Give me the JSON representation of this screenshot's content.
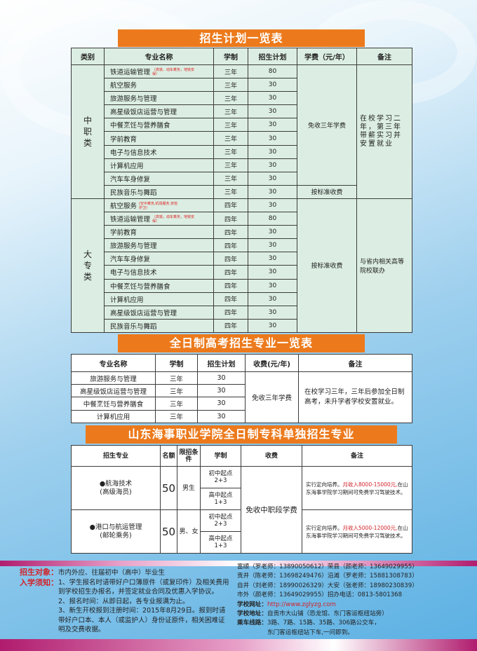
{
  "titles": {
    "plan": "招生计划一览表",
    "gaokao": "全日制高考招生专业一览表",
    "shandong": "山东海事职业学院全日制专科单独招生专业"
  },
  "table1": {
    "headers": [
      "类别",
      "专业名称",
      "学制",
      "招生计划",
      "学费（元/年）",
      "备注"
    ],
    "groups": [
      {
        "category": "中\n职\n类",
        "remark": "在校学习二年，第三年带薪实习并安置就业",
        "fees": [
          {
            "text": "免收三年学费",
            "span": 9
          },
          {
            "text": "按标准收费",
            "span": 1
          }
        ],
        "rows": [
          {
            "name": "铁道运输管理",
            "note": "（高铁、动车乘务，地铁安保）",
            "duration": "三年",
            "quota": "80"
          },
          {
            "name": "航空服务",
            "duration": "三年",
            "quota": "30"
          },
          {
            "name": "旅游服务与管理",
            "duration": "三年",
            "quota": "30"
          },
          {
            "name": "高星级饭店运营与管理",
            "duration": "三年",
            "quota": "30"
          },
          {
            "name": "中餐烹饪与营养膳食",
            "duration": "三年",
            "quota": "30"
          },
          {
            "name": "学前教育",
            "duration": "三年",
            "quota": "30"
          },
          {
            "name": "电子与信息技术",
            "duration": "三年",
            "quota": "30"
          },
          {
            "name": "计算机应用",
            "duration": "三年",
            "quota": "30"
          },
          {
            "name": "汽车车身修复",
            "duration": "三年",
            "quota": "30"
          },
          {
            "name": "民族音乐与舞蹈",
            "duration": "三年",
            "quota": "30"
          }
        ]
      },
      {
        "category": "大\n专\n类",
        "remark": "与省内相关高等院校联办",
        "fees": [
          {
            "text": "按标准收费",
            "span": 10
          }
        ],
        "rows": [
          {
            "name": "航空服务",
            "note": "(空中乘务,机场服务,安检护卫)",
            "duration": "四年",
            "quota": "30"
          },
          {
            "name": "铁道运输管理",
            "note": "（高铁，动车乘务，地铁安保）",
            "duration": "四年",
            "quota": "80"
          },
          {
            "name": "学前教育",
            "duration": "四年",
            "quota": "30"
          },
          {
            "name": "旅游服务与管理",
            "duration": "四年",
            "quota": "30"
          },
          {
            "name": "汽车车身修复",
            "duration": "四年",
            "quota": "30"
          },
          {
            "name": "电子与信息技术",
            "duration": "四年",
            "quota": "30"
          },
          {
            "name": "中餐烹饪与营养膳食",
            "duration": "四年",
            "quota": "30"
          },
          {
            "name": "计算机应用",
            "duration": "四年",
            "quota": "30"
          },
          {
            "name": "高星级饭店运营与管理",
            "duration": "四年",
            "quota": "30"
          },
          {
            "name": "民族音乐与舞蹈",
            "duration": "四年",
            "quota": "30"
          }
        ]
      }
    ]
  },
  "table2": {
    "headers": [
      "专业名称",
      "学制",
      "招生计划",
      "收费(元/年)",
      "备注"
    ],
    "fee": "免收三年学费",
    "remark": "在校学习三年，三年后参加全日制高考，未升学者学校安置就业。",
    "rows": [
      {
        "name": "旅游服务与管理",
        "duration": "三年",
        "quota": "30"
      },
      {
        "name": "高星级饭店运营与管理",
        "duration": "三年",
        "quota": "30"
      },
      {
        "name": "中餐烹饪与营养膳食",
        "duration": "三年",
        "quota": "30"
      },
      {
        "name": "计算机应用",
        "duration": "三年",
        "quota": "30"
      }
    ]
  },
  "table3": {
    "headers": [
      "招生专业",
      "名额",
      "限招条件",
      "学制",
      "收费",
      "备注"
    ],
    "fee": "免收中职段学费",
    "rows": [
      {
        "major": "●航海技术",
        "sub": "(高级海员)",
        "quota": "50",
        "cond": "男生",
        "tracks": [
          "初中起点 2+3",
          "高中起点 1+3"
        ],
        "remark_a": "实行定向培养。",
        "remark_b": "月收入8000-15000元,",
        "remark_c": "在山东海事学院学习期间可免费学习驾驶技术。"
      },
      {
        "major": "●港口与航运管理",
        "sub": "(邮轮乘务)",
        "quota": "50",
        "cond": "男、女",
        "tracks": [
          "初中起点 2+3",
          "高中起点 1+3"
        ],
        "remark_a": "实行定向培养。",
        "remark_b": "月收入5000-12000元,",
        "remark_c": "在山东海事学院学习期间可免费学习驾驶技术。"
      }
    ]
  },
  "notice": {
    "target_label": "招生对象：",
    "target": "市内外应、往届初中（高中）毕业生",
    "rules_label": "入学须知：",
    "rules": [
      "1、学生报名时请带好户口簿原件（或复印件）及相关费用到学校招生办报名，并签定就业合同及优惠入学协议。",
      "2、报名时间：从即日起，各专业报满为止。",
      "3、新生开校报到注册时间：2015年8月29日。报到时请带好户口本、本人（或监护人）身份证原件，相关困难证明及交费收据。"
    ]
  },
  "contact": {
    "lines": [
      "富顺（罗老师：13890050612）荣县（颜老师：13649029955）",
      "贡井（陈老师：13698249476）沿滩（罗老师：15881308783）",
      "自井（刘老师：18990026329）大安（张老师：18980230839）",
      "市外（颜老师：13649029955）招办电话：0813-5801368"
    ],
    "web_label": "学校网址：",
    "web": "http://www.zglyzg.com",
    "addr_label": "学校地址：",
    "addr": "自贡市大山铺（恐龙馆、东门客运枢纽站旁）",
    "bus_label": "乘车线路：",
    "bus": [
      "3路、7路、15路、35路、306路公交车，",
      "东门客运枢纽站下车,一问即到。"
    ]
  },
  "colors": {
    "banner": "#ec7a1c",
    "table_bg": "#dceee3",
    "accent_red": "#d2232a",
    "band": "#b01c6e"
  }
}
